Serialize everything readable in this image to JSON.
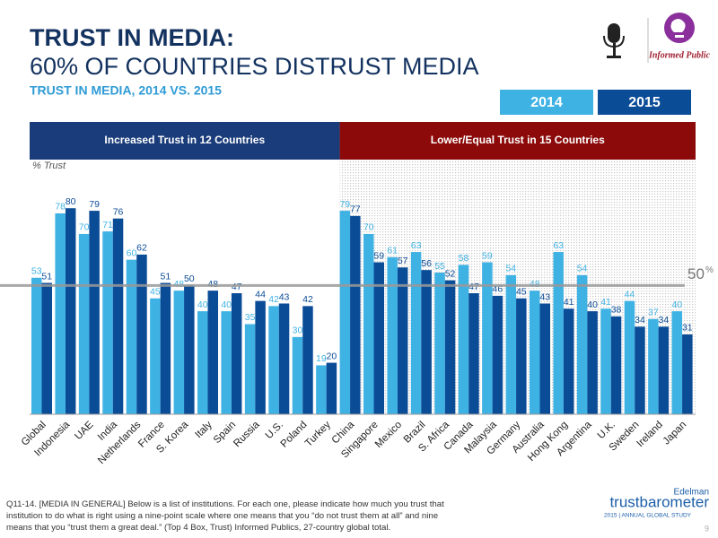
{
  "header": {
    "title": "TRUST IN MEDIA:",
    "headline": "60% OF COUNTRIES DISTRUST MEDIA",
    "badge": "Informed Public"
  },
  "chart_data": {
    "type": "bar",
    "title": "TRUST IN MEDIA, 2014 VS. 2015",
    "y_label": "% Trust",
    "categories": [
      "Global",
      "Indonesia",
      "UAE",
      "India",
      "Netherlands",
      "France",
      "S. Korea",
      "Italy",
      "Spain",
      "Russia",
      "U.S.",
      "Poland",
      "Turkey",
      "China",
      "Singapore",
      "Mexico",
      "Brazil",
      "S. Africa",
      "Canada",
      "Malaysia",
      "Germany",
      "Australia",
      "Hong Kong",
      "Argentina",
      "U.K.",
      "Sweden",
      "Ireland",
      "Japan"
    ],
    "series": [
      {
        "name": "2014",
        "color": "#3fb2e4",
        "values": [
          53,
          78,
          70,
          71,
          60,
          45,
          48,
          40,
          40,
          35,
          42,
          30,
          19,
          79,
          70,
          61,
          63,
          55,
          58,
          59,
          54,
          48,
          63,
          54,
          41,
          44,
          37,
          40
        ]
      },
      {
        "name": "2015",
        "color": "#0b4c97",
        "values": [
          51,
          80,
          79,
          76,
          62,
          51,
          50,
          48,
          47,
          44,
          43,
          42,
          20,
          77,
          59,
          57,
          56,
          52,
          47,
          46,
          45,
          43,
          41,
          40,
          38,
          34,
          34,
          31
        ]
      }
    ],
    "groups": [
      {
        "label": "Increased Trust in 12 Countries",
        "color": "#1a3c7a"
      },
      {
        "label": "Lower/Equal Trust in 15 Countries",
        "color": "#8c0a0a"
      }
    ],
    "reference_line": {
      "value": 50,
      "unit": "%"
    },
    "ylim": [
      0,
      94
    ]
  },
  "footer": {
    "note": "Q11-14. [MEDIA IN GENERAL] Below is a list of institutions. For each one, please indicate how much you trust that institution to do what is right using a nine-point scale where one means that you “do not trust them at all” and nine means that you “trust them a great deal.” (Top 4 Box, Trust) Informed Publics, 27-country global total.",
    "brand": "Edelman",
    "logo": "trustbarometer",
    "study": "2015 | ANNUAL GLOBAL STUDY",
    "page": "9"
  }
}
